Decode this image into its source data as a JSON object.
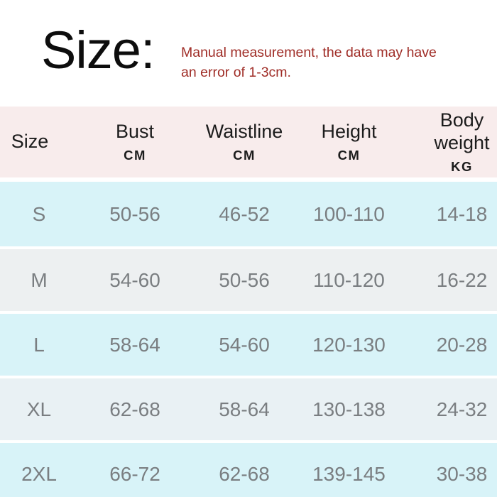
{
  "title": "Size:",
  "disclaimer": "Manual measurement, the data may have an error of 1-3cm.",
  "chart_data": {
    "type": "table",
    "title": "Size:",
    "note": "Manual measurement, the data may have an error of 1-3cm.",
    "columns": [
      {
        "label": "Size",
        "unit": ""
      },
      {
        "label": "Bust",
        "unit": "CM"
      },
      {
        "label": "Waistline",
        "unit": "CM"
      },
      {
        "label": "Height",
        "unit": "CM"
      },
      {
        "label": "Body weight",
        "unit": "KG"
      }
    ],
    "rows": [
      {
        "size": "S",
        "bust": "50-56",
        "waistline": "46-52",
        "height": "100-110",
        "body_weight": "14-18"
      },
      {
        "size": "M",
        "bust": "54-60",
        "waistline": "50-56",
        "height": "110-120",
        "body_weight": "16-22"
      },
      {
        "size": "L",
        "bust": "58-64",
        "waistline": "54-60",
        "height": "120-130",
        "body_weight": "20-28"
      },
      {
        "size": "XL",
        "bust": "62-68",
        "waistline": "58-64",
        "height": "130-138",
        "body_weight": "24-32"
      },
      {
        "size": "2XL",
        "bust": "66-72",
        "waistline": "62-68",
        "height": "139-145",
        "body_weight": "30-38"
      }
    ]
  },
  "colors": {
    "page_bg": "#ffffff",
    "header_bg": "#f8ecec",
    "row_cyan": "#d8f3f8",
    "row_gray": "#edf0f1",
    "row_gray_blue": "#e9f1f4",
    "header_text": "#1c1c1c",
    "value_text": "#7a7e81",
    "title_text": "#0d0d0d",
    "note_red": "#9f2c26"
  }
}
